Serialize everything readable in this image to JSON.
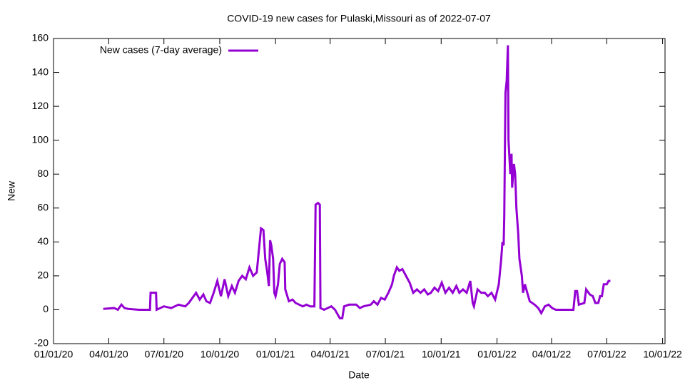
{
  "chart_data": {
    "type": "line",
    "title": "COVID-19 new cases for Pulaski,Missouri as of 2022-07-07",
    "x_label": "Date",
    "y_label": "New",
    "x": [
      "2020-03-23",
      "2020-04-10",
      "2020-04-16",
      "2020-04-22",
      "2020-04-27",
      "2020-05-03",
      "2020-05-21",
      "2020-06-08",
      "2020-06-09",
      "2020-06-18",
      "2020-06-19",
      "2020-07-01",
      "2020-07-13",
      "2020-07-25",
      "2020-08-05",
      "2020-08-11",
      "2020-08-17",
      "2020-08-23",
      "2020-08-29",
      "2020-09-04",
      "2020-09-09",
      "2020-09-15",
      "2020-09-21",
      "2020-09-27",
      "2020-10-03",
      "2020-10-09",
      "2020-10-15",
      "2020-10-21",
      "2020-10-26",
      "2020-11-01",
      "2020-11-07",
      "2020-11-13",
      "2020-11-19",
      "2020-11-25",
      "2020-12-01",
      "2020-12-08",
      "2020-12-12",
      "2020-12-15",
      "2020-12-18",
      "2020-12-21",
      "2020-12-23",
      "2020-12-25",
      "2020-12-28",
      "2020-12-30",
      "2021-01-01",
      "2021-01-05",
      "2021-01-08",
      "2021-01-12",
      "2021-01-16",
      "2021-01-17",
      "2021-01-23",
      "2021-01-29",
      "2021-02-03",
      "2021-02-09",
      "2021-02-15",
      "2021-02-21",
      "2021-02-27",
      "2021-03-06",
      "2021-03-08",
      "2021-03-12",
      "2021-03-15",
      "2021-03-16",
      "2021-03-22",
      "2021-03-28",
      "2021-04-03",
      "2021-04-09",
      "2021-04-17",
      "2021-04-21",
      "2021-04-24",
      "2021-05-02",
      "2021-05-14",
      "2021-05-20",
      "2021-05-26",
      "2021-06-07",
      "2021-06-12",
      "2021-06-18",
      "2021-06-24",
      "2021-06-30",
      "2021-07-06",
      "2021-07-12",
      "2021-07-15",
      "2021-07-20",
      "2021-07-24",
      "2021-07-29",
      "2021-08-04",
      "2021-08-10",
      "2021-08-16",
      "2021-08-22",
      "2021-08-28",
      "2021-09-03",
      "2021-09-09",
      "2021-09-14",
      "2021-09-20",
      "2021-09-26",
      "2021-10-02",
      "2021-10-08",
      "2021-10-14",
      "2021-10-20",
      "2021-10-26",
      "2021-10-31",
      "2021-11-06",
      "2021-11-12",
      "2021-11-18",
      "2021-11-22",
      "2021-11-24",
      "2021-11-30",
      "2021-12-06",
      "2021-12-12",
      "2021-12-17",
      "2021-12-23",
      "2021-12-29",
      "2022-01-04",
      "2022-01-08",
      "2022-01-10",
      "2022-01-12",
      "2022-01-13",
      "2022-01-15",
      "2022-01-17",
      "2022-01-19",
      "2022-01-20",
      "2022-01-23",
      "2022-01-25",
      "2022-01-26",
      "2022-01-29",
      "2022-01-31",
      "2022-02-02",
      "2022-02-05",
      "2022-02-07",
      "2022-02-11",
      "2022-02-13",
      "2022-02-16",
      "2022-02-20",
      "2022-02-24",
      "2022-03-04",
      "2022-03-10",
      "2022-03-15",
      "2022-03-21",
      "2022-03-27",
      "2022-04-02",
      "2022-04-08",
      "2022-05-07",
      "2022-05-10",
      "2022-05-13",
      "2022-05-16",
      "2022-05-25",
      "2022-05-28",
      "2022-06-03",
      "2022-06-08",
      "2022-06-12",
      "2022-06-17",
      "2022-06-20",
      "2022-06-23",
      "2022-06-26",
      "2022-07-01",
      "2022-07-04",
      "2022-07-07"
    ],
    "series": [
      {
        "name": "New cases (7-day average)",
        "color": "#9400d3",
        "values": [
          0.5,
          1,
          0,
          3,
          1,
          0.5,
          0,
          0,
          10,
          10,
          0,
          2,
          1,
          3,
          2,
          4,
          7,
          10,
          6,
          9,
          5,
          4,
          10,
          17,
          8,
          18,
          8,
          14,
          10,
          17,
          20,
          18,
          25,
          20,
          22,
          48,
          47,
          30,
          23,
          14,
          41,
          38,
          30,
          10,
          8,
          15,
          27,
          30,
          28,
          12,
          5,
          6,
          4,
          3,
          2,
          3,
          2,
          2,
          62,
          63,
          62,
          1,
          0,
          1,
          2,
          0,
          -5,
          -5,
          2,
          3,
          3,
          1,
          2,
          3,
          5,
          3,
          7,
          6,
          10,
          15,
          20,
          25,
          23,
          24,
          20,
          16,
          10,
          12,
          10,
          12,
          9,
          10,
          13,
          11,
          16,
          10,
          13,
          10,
          14,
          10,
          12,
          10,
          17,
          4,
          2,
          12,
          10,
          10,
          8,
          10,
          6,
          15,
          30,
          40,
          38,
          55,
          128,
          135,
          156,
          100,
          80,
          92,
          72,
          86,
          80,
          60,
          45,
          30,
          20,
          10,
          15,
          10,
          5,
          3,
          1,
          -2,
          2,
          3,
          1,
          0,
          0,
          11,
          11,
          3,
          4,
          12,
          9,
          8,
          4,
          4,
          8,
          8,
          15,
          15,
          17,
          17
        ]
      }
    ],
    "xlim": [
      "2020-01-01",
      "2022-10-05"
    ],
    "xticks": [
      {
        "value": "2020-01-01",
        "label": "01/01/20"
      },
      {
        "value": "2020-04-01",
        "label": "04/01/20"
      },
      {
        "value": "2020-07-01",
        "label": "07/01/20"
      },
      {
        "value": "2020-10-01",
        "label": "10/01/20"
      },
      {
        "value": "2021-01-01",
        "label": "01/01/21"
      },
      {
        "value": "2021-04-01",
        "label": "04/01/21"
      },
      {
        "value": "2021-07-01",
        "label": "07/01/21"
      },
      {
        "value": "2021-10-01",
        "label": "10/01/21"
      },
      {
        "value": "2022-01-01",
        "label": "01/01/22"
      },
      {
        "value": "2022-04-01",
        "label": "04/01/22"
      },
      {
        "value": "2022-07-01",
        "label": "07/01/22"
      },
      {
        "value": "2022-10-01",
        "label": "10/01/22"
      }
    ],
    "ylim": [
      -20,
      160
    ],
    "yticks": [
      -20,
      0,
      20,
      40,
      60,
      80,
      100,
      120,
      140,
      160
    ],
    "legend": "top-left"
  }
}
